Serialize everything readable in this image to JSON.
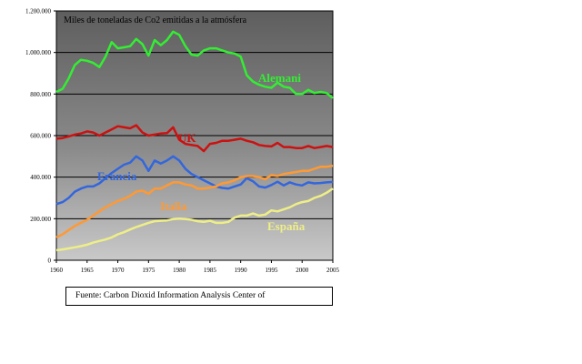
{
  "chart_data": {
    "type": "line",
    "title": "Miles de toneladas de Co2 emitidas a la atmósfera",
    "xlabel": "",
    "ylabel": "",
    "xlim": [
      1960,
      2005
    ],
    "ylim": [
      0,
      1200000
    ],
    "grid": true,
    "legend": "labels placed on the lines",
    "background": "gradient from #606060 (top) to #c8c8c8 (bottom)",
    "x_ticks": [
      1960,
      1965,
      1970,
      1975,
      1980,
      1985,
      1990,
      1995,
      2000,
      2005
    ],
    "y_ticks": [
      {
        "value": 0,
        "label": "0"
      },
      {
        "value": 200000,
        "label": "200.000"
      },
      {
        "value": 400000,
        "label": "400.000"
      },
      {
        "value": 600000,
        "label": "600.000"
      },
      {
        "value": 800000,
        "label": "800.000"
      },
      {
        "value": 1000000,
        "label": "1.000.000"
      },
      {
        "value": 1200000,
        "label": "1.200.000"
      }
    ],
    "series": [
      {
        "name": "Alemani",
        "color": "#33ee33",
        "x": [
          1960,
          1961,
          1962,
          1963,
          1964,
          1965,
          1966,
          1967,
          1968,
          1969,
          1970,
          1971,
          1972,
          1973,
          1974,
          1975,
          1976,
          1977,
          1978,
          1979,
          1980,
          1981,
          1982,
          1983,
          1984,
          1985,
          1986,
          1987,
          1988,
          1989,
          1990,
          1991,
          1992,
          1993,
          1994,
          1995,
          1996,
          1997,
          1998,
          1999,
          2000,
          2001,
          2002,
          2003,
          2004,
          2005
        ],
        "values": [
          810000,
          825000,
          875000,
          940000,
          965000,
          960000,
          950000,
          930000,
          980000,
          1050000,
          1020000,
          1025000,
          1030000,
          1065000,
          1040000,
          985000,
          1060000,
          1035000,
          1060000,
          1100000,
          1085000,
          1030000,
          990000,
          985000,
          1010000,
          1020000,
          1020000,
          1010000,
          1000000,
          995000,
          980000,
          890000,
          860000,
          845000,
          835000,
          830000,
          855000,
          835000,
          830000,
          800000,
          800000,
          820000,
          805000,
          810000,
          805000,
          780000
        ]
      },
      {
        "name": "UK",
        "color": "#cc1111",
        "x": [
          1960,
          1961,
          1962,
          1963,
          1964,
          1965,
          1966,
          1967,
          1968,
          1969,
          1970,
          1971,
          1972,
          1973,
          1974,
          1975,
          1976,
          1977,
          1978,
          1979,
          1980,
          1981,
          1982,
          1983,
          1984,
          1985,
          1986,
          1987,
          1988,
          1989,
          1990,
          1991,
          1992,
          1993,
          1994,
          1995,
          1996,
          1997,
          1998,
          1999,
          2000,
          2001,
          2002,
          2003,
          2004,
          2005
        ],
        "values": [
          585000,
          588000,
          596000,
          605000,
          610000,
          620000,
          615000,
          600000,
          615000,
          630000,
          645000,
          640000,
          635000,
          650000,
          615000,
          600000,
          605000,
          610000,
          612000,
          640000,
          580000,
          560000,
          555000,
          550000,
          525000,
          560000,
          565000,
          575000,
          575000,
          580000,
          585000,
          575000,
          568000,
          555000,
          550000,
          548000,
          565000,
          545000,
          545000,
          540000,
          540000,
          550000,
          540000,
          545000,
          550000,
          545000
        ]
      },
      {
        "name": "Francia",
        "color": "#3366dd",
        "x": [
          1960,
          1961,
          1962,
          1963,
          1964,
          1965,
          1966,
          1967,
          1968,
          1969,
          1970,
          1971,
          1972,
          1973,
          1974,
          1975,
          1976,
          1977,
          1978,
          1979,
          1980,
          1981,
          1982,
          1983,
          1984,
          1985,
          1986,
          1987,
          1988,
          1989,
          1990,
          1991,
          1992,
          1993,
          1994,
          1995,
          1996,
          1997,
          1998,
          1999,
          2000,
          2001,
          2002,
          2003,
          2004,
          2005
        ],
        "values": [
          270000,
          280000,
          300000,
          330000,
          345000,
          355000,
          355000,
          370000,
          395000,
          420000,
          440000,
          460000,
          470000,
          500000,
          480000,
          430000,
          480000,
          465000,
          480000,
          500000,
          480000,
          440000,
          415000,
          400000,
          385000,
          370000,
          355000,
          348000,
          345000,
          355000,
          365000,
          395000,
          380000,
          355000,
          350000,
          362000,
          378000,
          360000,
          375000,
          365000,
          360000,
          375000,
          370000,
          372000,
          375000,
          377000
        ]
      },
      {
        "name": "Italia",
        "color": "#ff9933",
        "x": [
          1960,
          1961,
          1962,
          1963,
          1964,
          1965,
          1966,
          1967,
          1968,
          1969,
          1970,
          1971,
          1972,
          1973,
          1974,
          1975,
          1976,
          1977,
          1978,
          1979,
          1980,
          1981,
          1982,
          1983,
          1984,
          1985,
          1986,
          1987,
          1988,
          1989,
          1990,
          1991,
          1992,
          1993,
          1994,
          1995,
          1996,
          1997,
          1998,
          1999,
          2000,
          2001,
          2002,
          2003,
          2004,
          2005
        ],
        "values": [
          110000,
          125000,
          145000,
          165000,
          180000,
          195000,
          215000,
          235000,
          255000,
          270000,
          285000,
          295000,
          310000,
          330000,
          335000,
          320000,
          345000,
          345000,
          360000,
          375000,
          375000,
          365000,
          360000,
          345000,
          345000,
          350000,
          355000,
          370000,
          375000,
          385000,
          400000,
          405000,
          405000,
          400000,
          390000,
          410000,
          405000,
          415000,
          420000,
          425000,
          430000,
          430000,
          440000,
          450000,
          450000,
          455000
        ]
      },
      {
        "name": "España",
        "color": "#eeee88",
        "x": [
          1960,
          1961,
          1962,
          1963,
          1964,
          1965,
          1966,
          1967,
          1968,
          1969,
          1970,
          1971,
          1972,
          1973,
          1974,
          1975,
          1976,
          1977,
          1978,
          1979,
          1980,
          1981,
          1982,
          1983,
          1984,
          1985,
          1986,
          1987,
          1988,
          1989,
          1990,
          1991,
          1992,
          1993,
          1994,
          1995,
          1996,
          1997,
          1998,
          1999,
          2000,
          2001,
          2002,
          2003,
          2004,
          2005
        ],
        "values": [
          48000,
          52000,
          57000,
          62000,
          68000,
          75000,
          85000,
          93000,
          100000,
          110000,
          125000,
          135000,
          148000,
          160000,
          170000,
          180000,
          188000,
          190000,
          192000,
          198000,
          200000,
          198000,
          195000,
          188000,
          185000,
          190000,
          180000,
          180000,
          185000,
          205000,
          215000,
          215000,
          225000,
          215000,
          220000,
          240000,
          235000,
          245000,
          255000,
          270000,
          280000,
          285000,
          300000,
          310000,
          325000,
          345000
        ]
      }
    ]
  },
  "note": {
    "title": "Miles de toneladas de Co2 emitidas a la atmósfera"
  },
  "source": {
    "text": "Fuente:  Carbon Dioxid Information Analysis Center of"
  }
}
